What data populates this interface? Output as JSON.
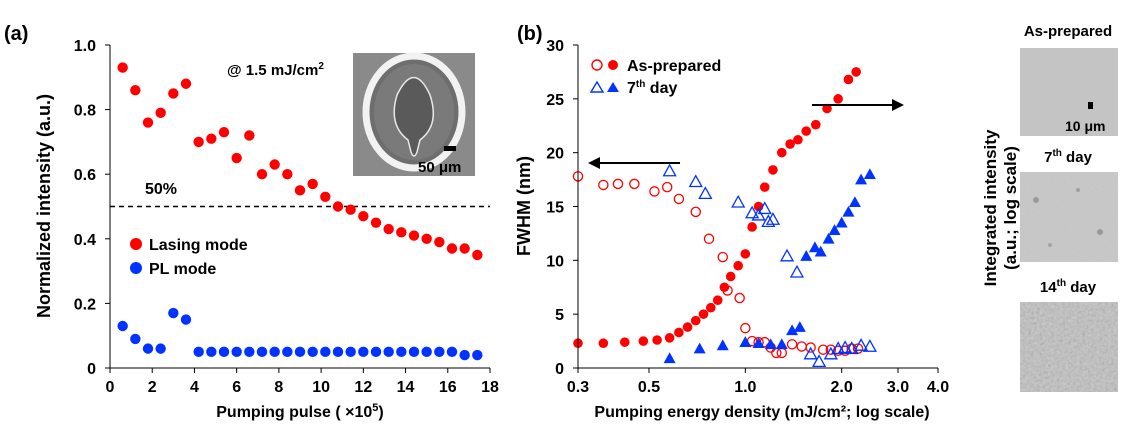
{
  "chart_data": [
    {
      "type": "scatter",
      "panel_label": "(a)",
      "xlabel": "Pumping pulse ( ×10",
      "xlabel_sup": "5",
      "xlabel_end": ")",
      "ylabel": "Normalized intensity (a.u.)",
      "xlim": [
        0,
        18
      ],
      "ylim": [
        0,
        1.0
      ],
      "xticks": [
        "0",
        "2",
        "4",
        "6",
        "8",
        "10",
        "12",
        "14",
        "16",
        "18"
      ],
      "yticks": [
        "0",
        "0.2",
        "0.4",
        "0.6",
        "0.8",
        "1.0"
      ],
      "annotation": "@ 1.5 mJ/cm",
      "annotation_sup": "2",
      "threshold_label": "50%",
      "threshold_value": 0.5,
      "inset_scale_label": "50 μm",
      "legend_position": "lower-left",
      "series": [
        {
          "name": "Lasing mode",
          "color": "#ff0000",
          "x": [
            0.6,
            1.2,
            1.8,
            2.4,
            3.0,
            3.6,
            4.2,
            4.8,
            5.4,
            6.0,
            6.6,
            7.2,
            7.8,
            8.4,
            9.0,
            9.6,
            10.2,
            10.8,
            11.4,
            12.0,
            12.6,
            13.2,
            13.8,
            14.4,
            15.0,
            15.6,
            16.2,
            16.8,
            17.4
          ],
          "y": [
            0.93,
            0.86,
            0.76,
            0.79,
            0.85,
            0.88,
            0.7,
            0.71,
            0.73,
            0.65,
            0.72,
            0.6,
            0.63,
            0.6,
            0.55,
            0.57,
            0.53,
            0.5,
            0.49,
            0.47,
            0.45,
            0.43,
            0.42,
            0.41,
            0.4,
            0.39,
            0.37,
            0.37,
            0.35
          ]
        },
        {
          "name": "PL mode",
          "color": "#0033ff",
          "x": [
            0.6,
            1.2,
            1.8,
            2.4,
            3.0,
            3.6,
            4.2,
            4.8,
            5.4,
            6.0,
            6.6,
            7.2,
            7.8,
            8.4,
            9.0,
            9.6,
            10.2,
            10.8,
            11.4,
            12.0,
            12.6,
            13.2,
            13.8,
            14.4,
            15.0,
            15.6,
            16.2,
            16.8,
            17.4
          ],
          "y": [
            0.13,
            0.09,
            0.06,
            0.06,
            0.17,
            0.15,
            0.05,
            0.05,
            0.05,
            0.05,
            0.05,
            0.05,
            0.05,
            0.05,
            0.05,
            0.05,
            0.05,
            0.05,
            0.05,
            0.05,
            0.05,
            0.05,
            0.05,
            0.05,
            0.05,
            0.05,
            0.05,
            0.04,
            0.04
          ]
        }
      ]
    },
    {
      "type": "scatter",
      "panel_label": "(b)",
      "xlabel": "Pumping energy density (mJ/cm²; log scale)",
      "ylabel_left": "FWHM (nm)",
      "ylabel_right_line1": "Integrated intensity",
      "ylabel_right_line2": "(a.u.; log scale)",
      "xscale": "log",
      "xlim": [
        0.3,
        4.0
      ],
      "ylim": [
        0,
        30
      ],
      "xticks": [
        "0.3",
        "0.5",
        "1.0",
        "2.0",
        "3.0",
        "4.0"
      ],
      "xtick_values": [
        0.3,
        0.5,
        1.0,
        2.0,
        3.0,
        4.0
      ],
      "yticks": [
        "0",
        "5",
        "10",
        "15",
        "20",
        "25",
        "30"
      ],
      "legend_position": "top-left",
      "legend_entries": [
        {
          "text": "As-prepared",
          "sup": "",
          "color": "#ff0000"
        },
        {
          "text": "7",
          "sup": "th",
          "text_end": " day",
          "color": "#0033ff"
        }
      ],
      "series": [
        {
          "name": "As-prepared",
          "marker": "open-circle",
          "axis": "FWHM",
          "color": "#ff0000",
          "x": [
            0.3,
            0.36,
            0.4,
            0.45,
            0.52,
            0.57,
            0.62,
            0.7,
            0.77,
            0.85,
            0.88,
            0.96,
            1.0,
            1.05,
            1.1,
            1.15,
            1.2,
            1.25,
            1.3,
            1.4,
            1.5,
            1.6,
            1.75,
            1.85,
            1.95,
            2.05,
            2.15,
            2.25
          ],
          "y": [
            17.8,
            17.0,
            17.1,
            17.1,
            16.4,
            16.8,
            15.7,
            14.5,
            12.0,
            10.3,
            7.2,
            6.5,
            3.7,
            2.5,
            2.4,
            2.4,
            1.9,
            1.4,
            1.4,
            2.2,
            2.0,
            1.9,
            1.7,
            1.7,
            1.6,
            1.6,
            1.8,
            1.8
          ]
        },
        {
          "name": "As-prepared",
          "marker": "filled-circle",
          "axis": "Integrated intensity",
          "color": "#ff0000",
          "x": [
            0.3,
            0.36,
            0.42,
            0.48,
            0.53,
            0.58,
            0.62,
            0.66,
            0.7,
            0.74,
            0.78,
            0.82,
            0.86,
            0.9,
            0.95,
            1.0,
            1.05,
            1.1,
            1.15,
            1.22,
            1.3,
            1.38,
            1.46,
            1.55,
            1.66,
            1.8,
            1.95,
            2.1,
            2.22
          ],
          "y": [
            2.3,
            2.3,
            2.4,
            2.5,
            2.6,
            2.8,
            3.3,
            3.8,
            4.4,
            5.0,
            5.6,
            6.3,
            7.5,
            8.5,
            9.5,
            10.6,
            13.1,
            15.0,
            16.8,
            18.4,
            20.0,
            20.8,
            21.2,
            22.0,
            22.6,
            24.1,
            25.0,
            26.8,
            27.5
          ]
        },
        {
          "name": "7th day",
          "marker": "open-triangle",
          "axis": "FWHM",
          "color": "#0033ff",
          "x": [
            0.58,
            0.7,
            0.75,
            0.95,
            1.05,
            1.1,
            1.15,
            1.18,
            1.22,
            1.35,
            1.45,
            1.6,
            1.7,
            1.85,
            1.95,
            2.05,
            2.15,
            2.3,
            2.45
          ],
          "y": [
            18.3,
            17.3,
            16.2,
            15.4,
            14.4,
            14.2,
            14.8,
            13.6,
            13.8,
            10.4,
            8.9,
            1.3,
            0.6,
            1.3,
            1.8,
            1.9,
            1.8,
            2.1,
            2.0
          ],
          "fwhm_note": "mixed"
        },
        {
          "name": "7th day",
          "marker": "filled-triangle",
          "axis": "Integrated intensity",
          "color": "#0033ff",
          "x": [
            0.58,
            0.72,
            0.85,
            1.0,
            1.1,
            1.2,
            1.3,
            1.4,
            1.48,
            1.55,
            1.65,
            1.72,
            1.82,
            1.9,
            2.0,
            2.1,
            2.2,
            2.3,
            2.45
          ],
          "y": [
            0.9,
            1.8,
            2.1,
            2.4,
            2.3,
            2.2,
            2.2,
            3.5,
            3.8,
            10.4,
            11.2,
            10.8,
            12.0,
            12.8,
            13.5,
            14.5,
            15.4,
            17.5,
            18.0
          ]
        }
      ]
    }
  ],
  "side_images": [
    {
      "title": "As-prepared",
      "title_sup": "",
      "title_end": "",
      "scale_label": "10 μm"
    },
    {
      "title": "7",
      "title_sup": "th",
      "title_end": " day",
      "scale_label": ""
    },
    {
      "title": "14",
      "title_sup": "th",
      "title_end": " day",
      "scale_label": ""
    }
  ]
}
